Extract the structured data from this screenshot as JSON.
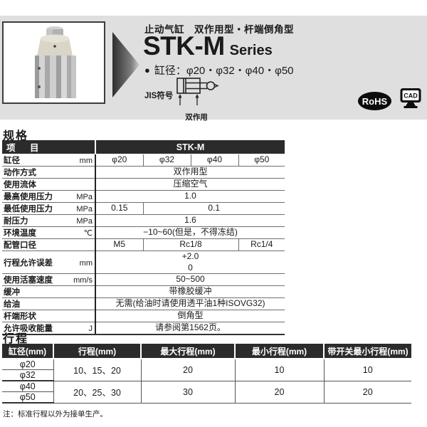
{
  "colors": {
    "band_bg": "#dfdfdf",
    "table_header_bg": "#2b2b2b",
    "text": "#1a1a1a"
  },
  "header": {
    "subtitle": "止动气缸　双作用型・杆端倒角型",
    "series_name": "STK-M",
    "series_suffix": "Series",
    "bullet": "●",
    "bore_line": "缸径：φ20・φ32・φ40・φ50",
    "jis_label": "JIS符号",
    "jis_caption": "双作用",
    "rohs_badge": "RoHS",
    "cad_badge": "CAD"
  },
  "spec": {
    "section_title": "规格",
    "table": {
      "header": {
        "item_label": "项　目",
        "series_label": "STK-M"
      },
      "rows": [
        {
          "label": "缸径",
          "unit": "mm",
          "values": [
            {
              "text": "φ20",
              "span": 1
            },
            {
              "text": "φ32",
              "span": 1
            },
            {
              "text": "φ40",
              "span": 1
            },
            {
              "text": "φ50",
              "span": 1
            }
          ]
        },
        {
          "label": "动作方式",
          "unit": "",
          "values": [
            {
              "text": "双作用型",
              "span": 4
            }
          ]
        },
        {
          "label": "使用流体",
          "unit": "",
          "values": [
            {
              "text": "压缩空气",
              "span": 4
            }
          ]
        },
        {
          "label": "最高使用压力",
          "unit": "MPa",
          "values": [
            {
              "text": "1.0",
              "span": 4
            }
          ]
        },
        {
          "label": "最低使用压力",
          "unit": "MPa",
          "values": [
            {
              "text": "0.15",
              "span": 1
            },
            {
              "text": "0.1",
              "span": 3
            }
          ]
        },
        {
          "label": "耐压力",
          "unit": "MPa",
          "values": [
            {
              "text": "1.6",
              "span": 4
            }
          ]
        },
        {
          "label": "环境温度",
          "unit": "℃",
          "values": [
            {
              "text": "−10~60(但是，不得冻结)",
              "span": 4
            }
          ]
        },
        {
          "label": "配管口径",
          "unit": "",
          "values": [
            {
              "text": "M5",
              "span": 1
            },
            {
              "text": "Rc1/8",
              "span": 2
            },
            {
              "text": "Rc1/4",
              "span": 1
            }
          ]
        },
        {
          "label": "行程允许误差",
          "unit": "mm",
          "tall": true,
          "values": [
            {
              "text": "+2.0\n0",
              "span": 4
            }
          ]
        },
        {
          "label": "使用活塞速度",
          "unit": "mm/s",
          "values": [
            {
              "text": "50~500",
              "span": 4
            }
          ]
        },
        {
          "label": "缓冲",
          "unit": "",
          "values": [
            {
              "text": "带橡胶缓冲",
              "span": 4
            }
          ]
        },
        {
          "label": "给油",
          "unit": "",
          "values": [
            {
              "text": "无需(给油时请使用透平油1种ISOVG32)",
              "span": 4
            }
          ]
        },
        {
          "label": "杆端形状",
          "unit": "",
          "values": [
            {
              "text": "倒角型",
              "span": 4
            }
          ]
        },
        {
          "label": "允许吸收能量",
          "unit": "J",
          "values": [
            {
              "text": "请参阅第1562页。",
              "span": 4
            }
          ]
        }
      ]
    }
  },
  "stroke": {
    "section_title": "行程",
    "table": {
      "headers": [
        "缸径(mm)",
        "行程(mm)",
        "最大行程(mm)",
        "最小行程(mm)",
        "带开关最小行程(mm)"
      ],
      "groups": [
        {
          "bores": [
            "φ20",
            "φ32"
          ],
          "stroke": "10、15、20",
          "max": "20",
          "min": "10",
          "min_with_switch": "10"
        },
        {
          "bores": [
            "φ40",
            "φ50"
          ],
          "stroke": "20、25、30",
          "max": "30",
          "min": "20",
          "min_with_switch": "20"
        }
      ]
    }
  },
  "note": "注：标准行程以外为接单生产。"
}
